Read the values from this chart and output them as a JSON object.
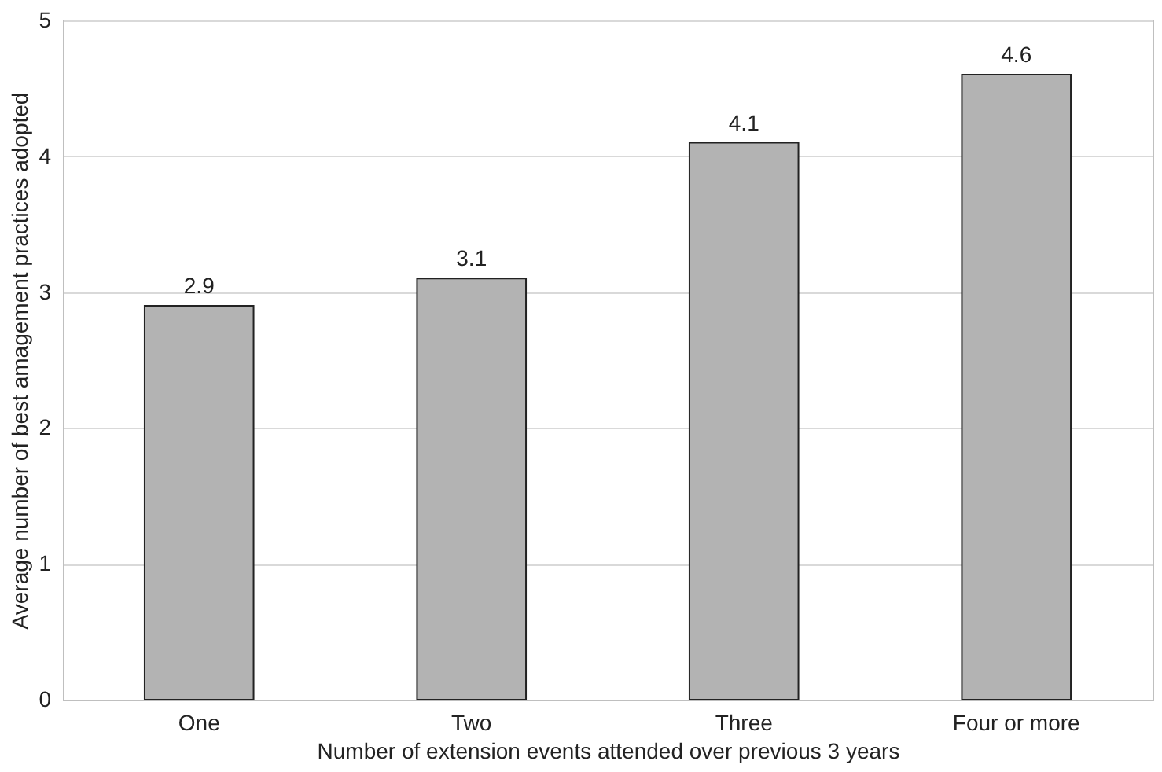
{
  "chart_data": {
    "type": "bar",
    "xlabel": "Number of extension events attended over previous 3 years",
    "ylabel": "Average number of best amagement practices adopted",
    "categories": [
      "One",
      "Two",
      "Three",
      "Four or more"
    ],
    "values": [
      2.9,
      3.1,
      4.1,
      4.6
    ],
    "color": "#b3b3b3",
    "ylim": [
      0,
      5
    ],
    "yticks": [
      0,
      1,
      2,
      3,
      4,
      5
    ],
    "grid": "y",
    "data_labels": true
  }
}
